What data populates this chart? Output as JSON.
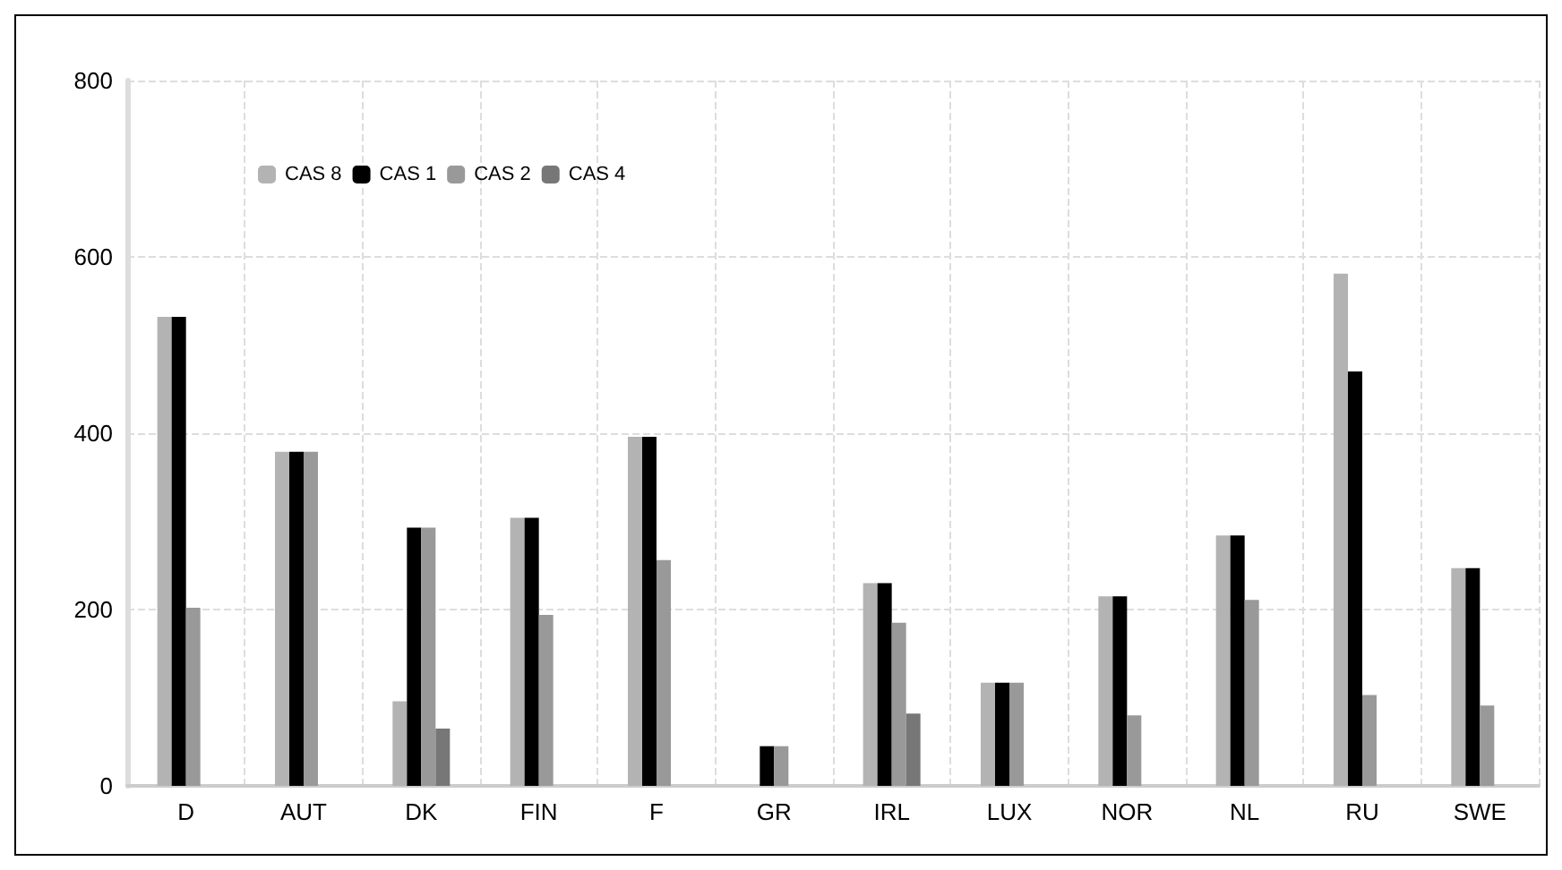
{
  "chart_data": {
    "type": "bar",
    "categories": [
      "D",
      "AUT",
      "DK",
      "FIN",
      "F",
      "GR",
      "IRL",
      "LUX",
      "NOR",
      "NL",
      "RU",
      "SWE"
    ],
    "series": [
      {
        "name": "CAS 8",
        "color": "#b3b3b3",
        "values": [
          532,
          379,
          96,
          304,
          396,
          null,
          230,
          117,
          215,
          284,
          581,
          247
        ]
      },
      {
        "name": "CAS 1",
        "color": "#000000",
        "values": [
          532,
          379,
          293,
          304,
          396,
          45,
          230,
          117,
          215,
          284,
          470,
          247
        ]
      },
      {
        "name": "CAS 2",
        "color": "#999999",
        "values": [
          202,
          379,
          293,
          194,
          256,
          45,
          185,
          117,
          80,
          211,
          103,
          91
        ]
      },
      {
        "name": "CAS 4",
        "color": "#777777",
        "values": [
          null,
          null,
          65,
          null,
          null,
          null,
          82,
          null,
          null,
          null,
          null,
          null
        ]
      }
    ],
    "ylim": [
      0,
      800
    ],
    "yticks": [
      0,
      200,
      400,
      600,
      800
    ],
    "grid": true,
    "legend": "top left"
  }
}
